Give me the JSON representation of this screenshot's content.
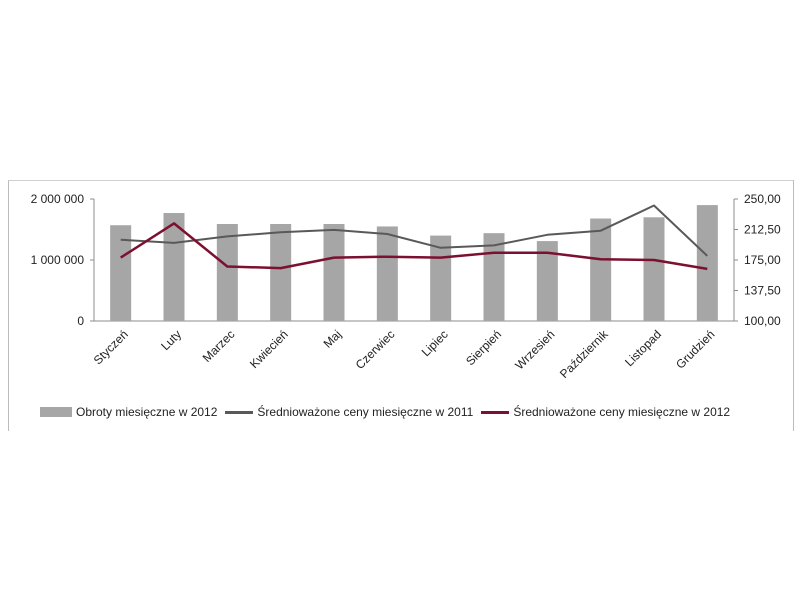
{
  "chart_data": {
    "type": "bar+line",
    "categories": [
      "Styczeń",
      "Luty",
      "Marzec",
      "Kwiecień",
      "Maj",
      "Czerwiec",
      "Lipiec",
      "Sierpień",
      "Wrzesień",
      "Październik",
      "Listopad",
      "Grudzień"
    ],
    "bar_series": {
      "name": "Obroty miesięczne w 2012",
      "axis": "left",
      "values": [
        1570000,
        1770000,
        1590000,
        1590000,
        1590000,
        1550000,
        1400000,
        1440000,
        1310000,
        1680000,
        1700000,
        1900000
      ],
      "color": "#a6a6a6"
    },
    "line_series": [
      {
        "name": "Średnioważone ceny miesięczne w 2011",
        "axis": "right",
        "values": [
          200,
          196,
          204,
          209,
          212,
          207,
          190,
          193,
          206,
          211,
          242,
          180
        ],
        "color": "#595959"
      },
      {
        "name": "Średnioważone ceny miesięczne w 2012",
        "axis": "right",
        "values": [
          178,
          220,
          167,
          165,
          178,
          179,
          178,
          184,
          184,
          176,
          175,
          164
        ],
        "color": "#7b1030"
      }
    ],
    "left_axis": {
      "ylim": [
        0,
        2000000
      ],
      "ticks": [
        "0",
        "1 000 000",
        "2 000 000"
      ]
    },
    "right_axis": {
      "ylim": [
        100,
        250
      ],
      "ticks": [
        "100,00",
        "137,50",
        "175,00",
        "212,50",
        "250,00"
      ]
    },
    "grid": false,
    "legend_position": "bottom"
  }
}
